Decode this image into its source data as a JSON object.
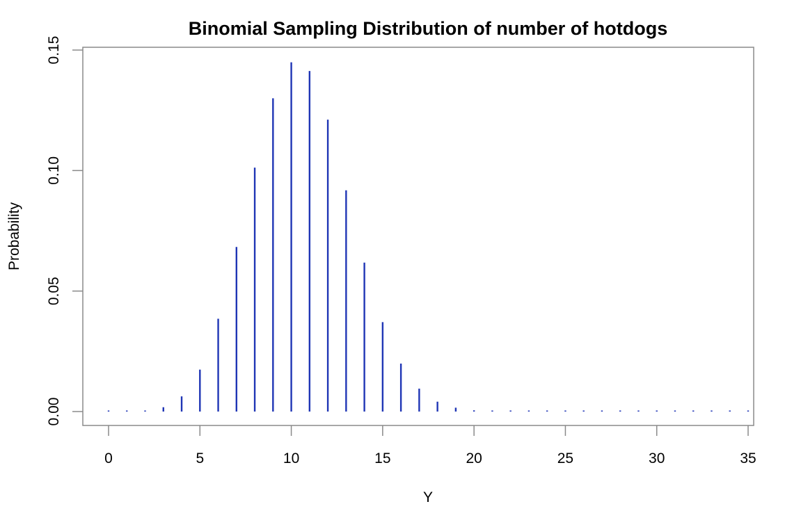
{
  "chart_data": {
    "type": "bar",
    "subtype": "stem / needle plot (R type='h')",
    "title": "Binomial Sampling Distribution of number of hotdogs",
    "xlabel": "Y",
    "ylabel": "Probability",
    "xlim": [
      -1.4,
      35.6
    ],
    "ylim": [
      0,
      0.15
    ],
    "x_ticks": [
      "0",
      "5",
      "10",
      "15",
      "20",
      "25",
      "30",
      "35"
    ],
    "y_ticks": [
      "0.00",
      "0.05",
      "0.10",
      "0.15"
    ],
    "grid": false,
    "legend": null,
    "color": "#1f35b5",
    "x": [
      0,
      1,
      2,
      3,
      4,
      5,
      6,
      7,
      8,
      9,
      10,
      11,
      12,
      13,
      14,
      15,
      16,
      17,
      18,
      19,
      20,
      21,
      22,
      23,
      24,
      25,
      26,
      27,
      28,
      29,
      30,
      31,
      32,
      33,
      34,
      35
    ],
    "values": [
      0.0,
      0.0001,
      0.0004,
      0.0018,
      0.0063,
      0.0174,
      0.0385,
      0.0683,
      0.1012,
      0.13,
      0.1449,
      0.1413,
      0.1211,
      0.0918,
      0.0618,
      0.0371,
      0.0199,
      0.0095,
      0.0041,
      0.0016,
      0.0005,
      0.0002,
      0.0,
      0.0,
      0.0,
      0.0,
      0.0,
      0.0,
      0.0,
      0.0,
      0.0,
      0.0,
      0.0,
      0.0,
      0.0,
      0.0
    ]
  }
}
